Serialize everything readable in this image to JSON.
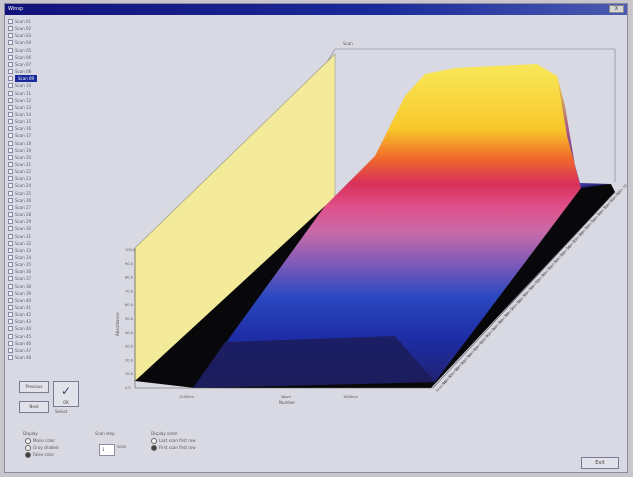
{
  "window": {
    "title": "Winsp",
    "close_label": "X"
  },
  "list_items": [
    {
      "label": "Scan 01",
      "selected": false
    },
    {
      "label": "Scan 02",
      "selected": false
    },
    {
      "label": "Scan 03",
      "selected": false
    },
    {
      "label": "Scan 04",
      "selected": false
    },
    {
      "label": "Scan 05",
      "selected": false
    },
    {
      "label": "Scan 06",
      "selected": false
    },
    {
      "label": "Scan 07",
      "selected": false
    },
    {
      "label": "Scan 08",
      "selected": false
    },
    {
      "label": "Scan 09",
      "selected": true
    },
    {
      "label": "Scan 10",
      "selected": false
    },
    {
      "label": "Scan 11",
      "selected": false
    },
    {
      "label": "Scan 12",
      "selected": false
    },
    {
      "label": "Scan 13",
      "selected": false
    },
    {
      "label": "Scan 14",
      "selected": false
    },
    {
      "label": "Scan 15",
      "selected": false
    },
    {
      "label": "Scan 16",
      "selected": false
    },
    {
      "label": "Scan 17",
      "selected": false
    },
    {
      "label": "Scan 18",
      "selected": false
    },
    {
      "label": "Scan 19",
      "selected": false
    },
    {
      "label": "Scan 20",
      "selected": false
    },
    {
      "label": "Scan 21",
      "selected": false
    },
    {
      "label": "Scan 22",
      "selected": false
    },
    {
      "label": "Scan 23",
      "selected": false
    },
    {
      "label": "Scan 24",
      "selected": false
    },
    {
      "label": "Scan 25",
      "selected": false
    },
    {
      "label": "Scan 26",
      "selected": false
    },
    {
      "label": "Scan 27",
      "selected": false
    },
    {
      "label": "Scan 28",
      "selected": false
    },
    {
      "label": "Scan 29",
      "selected": false
    },
    {
      "label": "Scan 30",
      "selected": false
    },
    {
      "label": "Scan 31",
      "selected": false
    },
    {
      "label": "Scan 32",
      "selected": false
    },
    {
      "label": "Scan 33",
      "selected": false
    },
    {
      "label": "Scan 34",
      "selected": false
    },
    {
      "label": "Scan 35",
      "selected": false
    },
    {
      "label": "Scan 36",
      "selected": false
    },
    {
      "label": "Scan 37",
      "selected": false
    },
    {
      "label": "Scan 38",
      "selected": false
    },
    {
      "label": "Scan 39",
      "selected": false
    },
    {
      "label": "Scan 40",
      "selected": false
    },
    {
      "label": "Scan 41",
      "selected": false
    },
    {
      "label": "Scan 42",
      "selected": false
    },
    {
      "label": "Scan 43",
      "selected": false
    },
    {
      "label": "Scan 44",
      "selected": false
    },
    {
      "label": "Scan 45",
      "selected": false
    },
    {
      "label": "Scan 46",
      "selected": false
    },
    {
      "label": "Scan 47",
      "selected": false
    },
    {
      "label": "Scan 48",
      "selected": false
    }
  ],
  "controls": {
    "previous_label": "Previous",
    "next_label": "Next",
    "apply_label": "OK",
    "apply_sub": "Select"
  },
  "plot": {
    "title": "Scan",
    "x_tick_labels": [
      "1200nm",
      "Wave",
      "1600nm"
    ],
    "x_axis_label": "Number",
    "y_axis_label": "Absorbance",
    "y_tick_labels": [
      "100.0",
      "90.0",
      "80.0",
      "70.0",
      "60.0",
      "50.0",
      "40.0",
      "30.0",
      "20.0",
      "10.0",
      "0.0"
    ],
    "depth_tick_labels": [
      "Scan 48",
      "Scan 47",
      "Scan 46",
      "Scan 45",
      "Scan 44",
      "Scan 43",
      "Scan 42",
      "Scan 41",
      "Scan 40",
      "Scan 39",
      "Scan 38",
      "Scan 37",
      "Scan 36",
      "Scan 35",
      "Scan 34",
      "Scan 33",
      "Scan 32",
      "Scan 31",
      "Scan 30",
      "Scan 29",
      "Scan 28",
      "Scan 27",
      "Scan 26",
      "Scan 25",
      "Scan 24",
      "Scan 23",
      "Scan 22",
      "Scan 21",
      "Scan 20",
      "Scan 19"
    ],
    "colors": {
      "wall": "#f3ea9a",
      "low": "#2a2a8a",
      "mid": "#e04a8a",
      "high": "#f6d62a",
      "shadow": "#08080a"
    }
  },
  "display_group": {
    "title": "Display",
    "options": [
      {
        "label": "Mono color",
        "selected": false
      },
      {
        "label": "Gray shaded",
        "selected": false
      },
      {
        "label": "False color",
        "selected": true
      }
    ]
  },
  "step_group": {
    "title": "Scan step",
    "value": "1",
    "spin_label": "scan"
  },
  "order_group": {
    "title": "Display order",
    "options": [
      {
        "label": "Last scan first row",
        "selected": false
      },
      {
        "label": "First scan first row",
        "selected": true
      }
    ]
  },
  "footer": {
    "exit_label": "Exit"
  }
}
